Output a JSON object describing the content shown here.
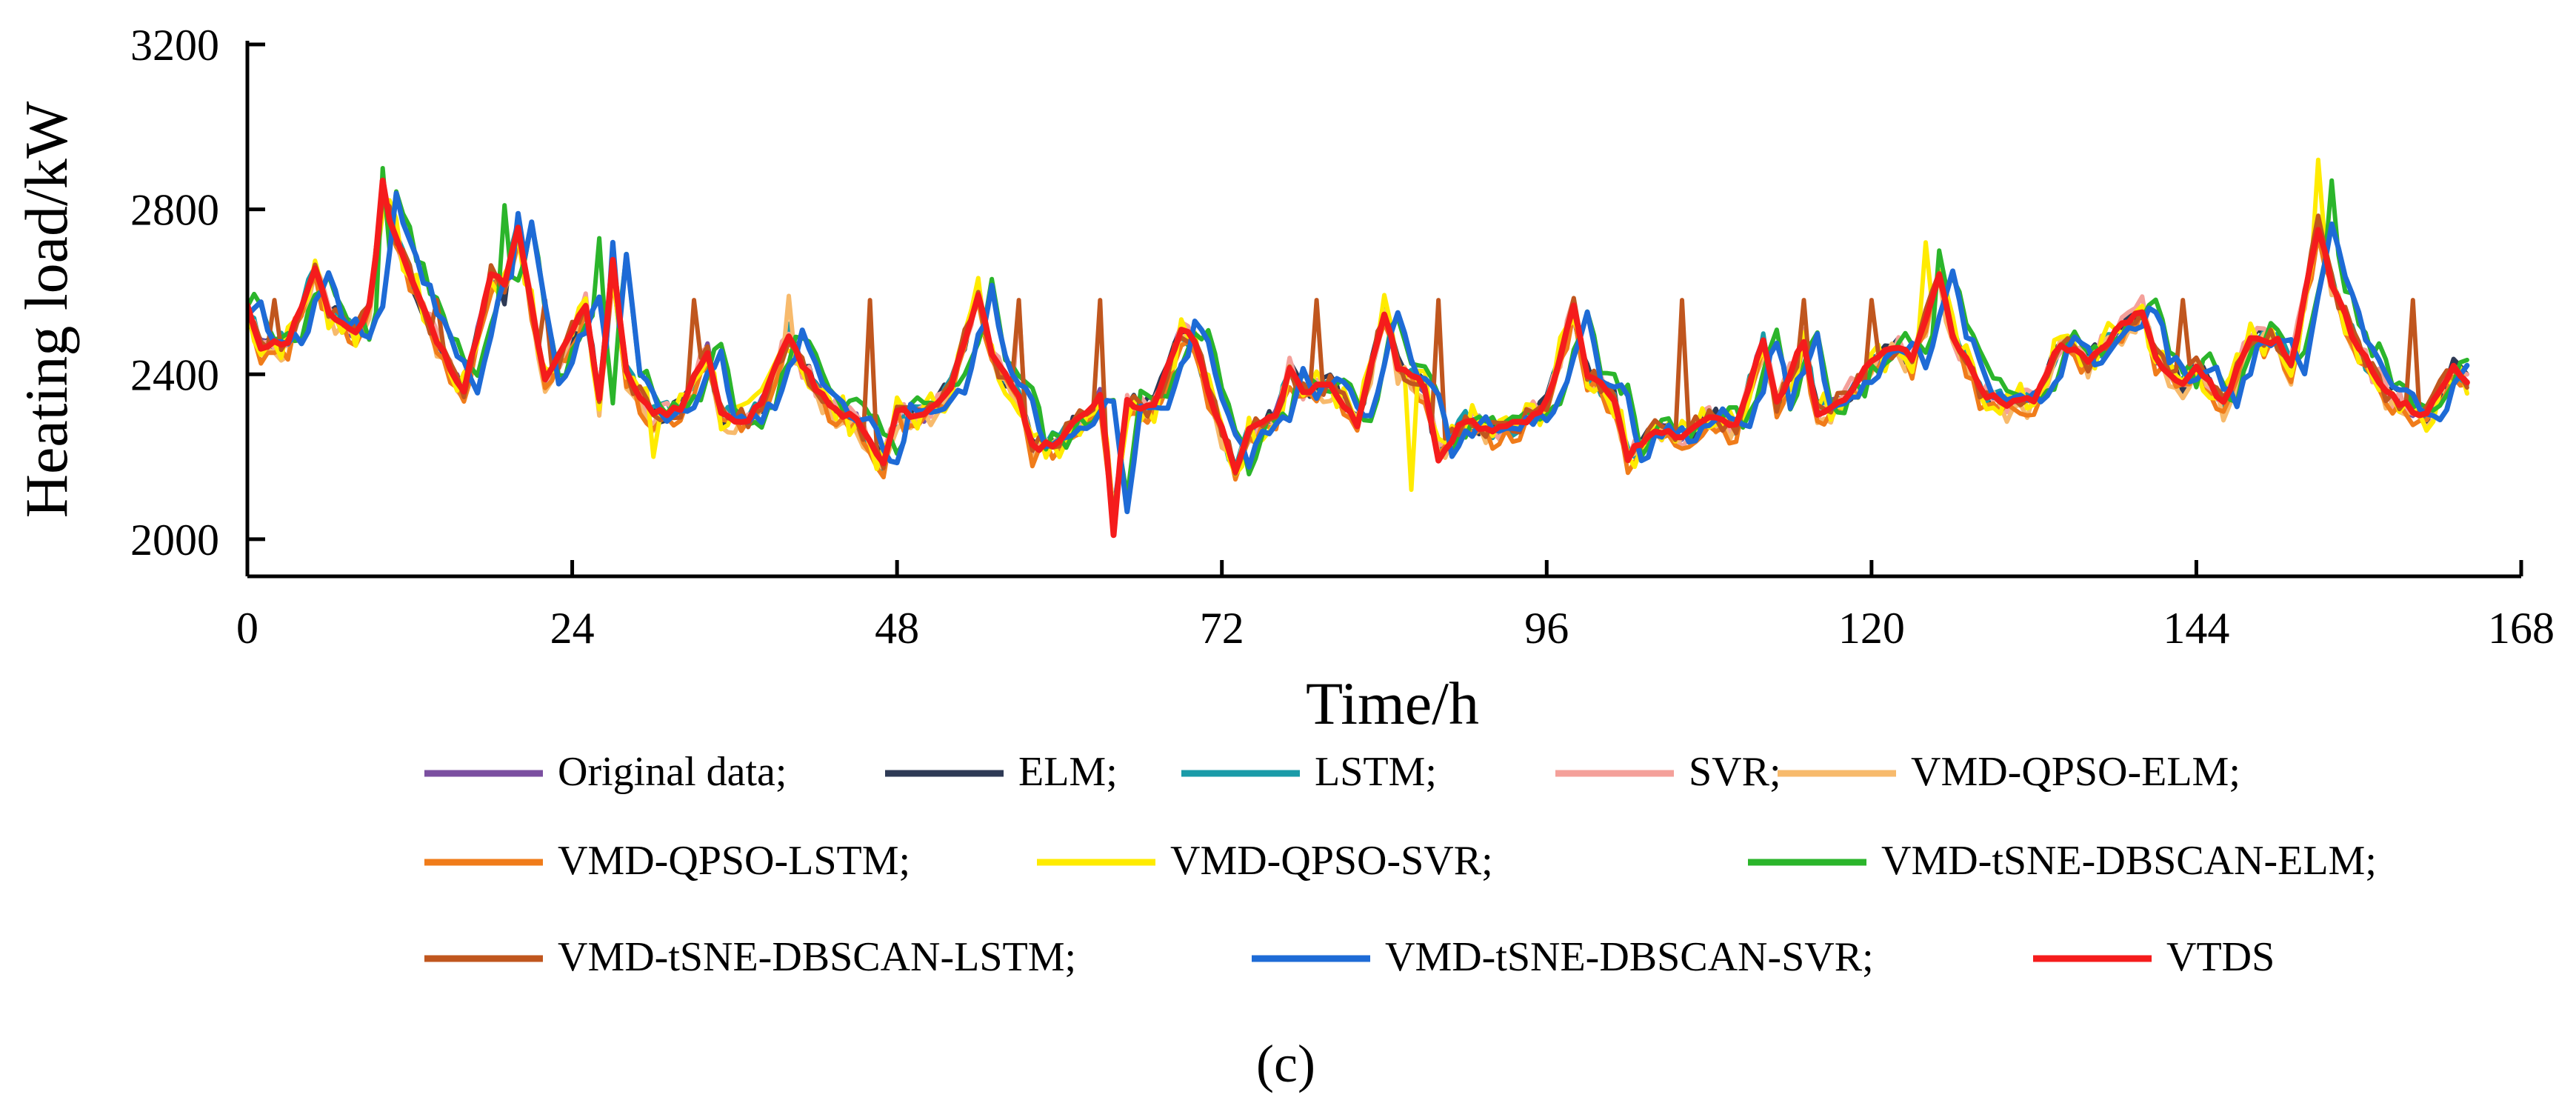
{
  "chart_data": {
    "type": "line",
    "title": "",
    "xlabel": "Time/h",
    "ylabel": "Heating load/kW",
    "xlim": [
      0,
      168
    ],
    "ylim": [
      1910,
      3200
    ],
    "x_ticks": [
      "0",
      "24",
      "48",
      "72",
      "96",
      "120",
      "144",
      "168"
    ],
    "y_ticks": [
      "2000",
      "2400",
      "2800",
      "3200"
    ],
    "panel_label": "(c)",
    "legend_separator": ";",
    "series": [
      {
        "name": "Original data",
        "color": "#7B4FA0",
        "stroke": 6,
        "seed": 1,
        "shift": 0,
        "bias": 0,
        "noise": 15,
        "spikes": []
      },
      {
        "name": "ELM",
        "color": "#2E3A55",
        "stroke": 6,
        "seed": 2,
        "shift": 0,
        "bias": 0,
        "noise": 25,
        "spikes": [
          [
            19,
            2570
          ]
        ]
      },
      {
        "name": "LSTM",
        "color": "#1A9BA8",
        "stroke": 6,
        "seed": 3,
        "shift": 0,
        "bias": 0,
        "noise": 25,
        "spikes": []
      },
      {
        "name": "SVR",
        "color": "#F4A09A",
        "stroke": 6,
        "seed": 4,
        "shift": 0,
        "bias": 0,
        "noise": 30,
        "spikes": [
          [
            57,
            2570
          ]
        ]
      },
      {
        "name": "VMD-QPSO-ELM",
        "color": "#F7BA6C",
        "stroke": 6,
        "seed": 5,
        "shift": 0,
        "bias": -15,
        "noise": 30,
        "spikes": [
          [
            40,
            2590
          ]
        ]
      },
      {
        "name": "VMD-QPSO-LSTM",
        "color": "#F07C1A",
        "stroke": 6,
        "seed": 6,
        "shift": 0,
        "bias": -20,
        "noise": 25,
        "spikes": []
      },
      {
        "name": "VMD-QPSO-SVR",
        "color": "#FFEB00",
        "stroke": 6,
        "seed": 7,
        "shift": 0,
        "bias": 0,
        "noise": 45,
        "spikes": [
          [
            124,
            2720
          ],
          [
            153,
            2920
          ],
          [
            86,
            2120
          ],
          [
            30,
            2200
          ]
        ]
      },
      {
        "name": "VMD-tSNE-DBSCAN-ELM",
        "color": "#2BB52B",
        "stroke": 6,
        "seed": 8,
        "shift": 1,
        "bias": 10,
        "noise": 30,
        "spikes": [
          [
            10,
            2900
          ],
          [
            19,
            2810
          ],
          [
            26,
            2730
          ],
          [
            125,
            2700
          ],
          [
            154,
            2870
          ]
        ]
      },
      {
        "name": "VMD-tSNE-DBSCAN-LSTM",
        "color": "#C0561E",
        "stroke": 6,
        "seed": 9,
        "shift": 0,
        "bias": 0,
        "noise": 25,
        "spikes": [
          [
            2,
            2580
          ],
          [
            14,
            2580
          ],
          [
            22,
            2580
          ],
          [
            33,
            2580
          ],
          [
            46,
            2580
          ],
          [
            57,
            2580
          ],
          [
            63,
            2580
          ],
          [
            79,
            2580
          ],
          [
            88,
            2580
          ],
          [
            106,
            2580
          ],
          [
            115,
            2580
          ],
          [
            120,
            2580
          ],
          [
            143,
            2580
          ],
          [
            160,
            2580
          ]
        ]
      },
      {
        "name": "VMD-tSNE-DBSCAN-SVR",
        "color": "#1E6BD6",
        "stroke": 7,
        "seed": 10,
        "shift": 1,
        "bias": 0,
        "noise": 20,
        "spikes": [
          [
            20,
            2790
          ],
          [
            27,
            2720
          ]
        ]
      },
      {
        "name": "VTDS",
        "color": "#F51C1C",
        "stroke": 8,
        "seed": 11,
        "shift": 0,
        "bias": 0,
        "noise": 10,
        "spikes": [
          [
            10,
            2870
          ],
          [
            64,
            2010
          ]
        ]
      }
    ],
    "base_key_points": [
      [
        0,
        2560
      ],
      [
        1,
        2470
      ],
      [
        3,
        2480
      ],
      [
        5,
        2650
      ],
      [
        6,
        2550
      ],
      [
        8,
        2500
      ],
      [
        9,
        2560
      ],
      [
        10,
        2830
      ],
      [
        12,
        2640
      ],
      [
        14,
        2480
      ],
      [
        16,
        2360
      ],
      [
        18,
        2640
      ],
      [
        19,
        2620
      ],
      [
        20,
        2750
      ],
      [
        22,
        2380
      ],
      [
        23,
        2440
      ],
      [
        25,
        2570
      ],
      [
        26,
        2340
      ],
      [
        27,
        2680
      ],
      [
        28,
        2400
      ],
      [
        30,
        2300
      ],
      [
        32,
        2320
      ],
      [
        34,
        2460
      ],
      [
        35,
        2300
      ],
      [
        37,
        2290
      ],
      [
        38,
        2330
      ],
      [
        40,
        2500
      ],
      [
        41,
        2420
      ],
      [
        43,
        2320
      ],
      [
        45,
        2290
      ],
      [
        47,
        2180
      ],
      [
        48,
        2310
      ],
      [
        50,
        2300
      ],
      [
        52,
        2370
      ],
      [
        54,
        2600
      ],
      [
        55,
        2440
      ],
      [
        57,
        2350
      ],
      [
        58,
        2220
      ],
      [
        60,
        2240
      ],
      [
        62,
        2310
      ],
      [
        63,
        2350
      ],
      [
        64,
        2080
      ],
      [
        65,
        2330
      ],
      [
        67,
        2320
      ],
      [
        69,
        2510
      ],
      [
        70,
        2480
      ],
      [
        71,
        2360
      ],
      [
        73,
        2170
      ],
      [
        74,
        2260
      ],
      [
        76,
        2300
      ],
      [
        77,
        2410
      ],
      [
        78,
        2360
      ],
      [
        80,
        2380
      ],
      [
        82,
        2280
      ],
      [
        84,
        2550
      ],
      [
        85,
        2420
      ],
      [
        87,
        2370
      ],
      [
        88,
        2200
      ],
      [
        90,
        2290
      ],
      [
        92,
        2260
      ],
      [
        94,
        2280
      ],
      [
        96,
        2330
      ],
      [
        98,
        2560
      ],
      [
        99,
        2400
      ],
      [
        101,
        2340
      ],
      [
        102,
        2200
      ],
      [
        104,
        2270
      ],
      [
        106,
        2250
      ],
      [
        108,
        2300
      ],
      [
        110,
        2270
      ],
      [
        112,
        2480
      ],
      [
        113,
        2330
      ],
      [
        115,
        2480
      ],
      [
        116,
        2310
      ],
      [
        118,
        2340
      ],
      [
        120,
        2430
      ],
      [
        122,
        2470
      ],
      [
        123,
        2430
      ],
      [
        125,
        2640
      ],
      [
        126,
        2500
      ],
      [
        128,
        2360
      ],
      [
        130,
        2330
      ],
      [
        132,
        2340
      ],
      [
        134,
        2480
      ],
      [
        136,
        2430
      ],
      [
        138,
        2500
      ],
      [
        140,
        2560
      ],
      [
        141,
        2440
      ],
      [
        143,
        2380
      ],
      [
        144,
        2420
      ],
      [
        146,
        2330
      ],
      [
        148,
        2490
      ],
      [
        150,
        2480
      ],
      [
        151,
        2420
      ],
      [
        153,
        2760
      ],
      [
        154,
        2620
      ],
      [
        156,
        2460
      ],
      [
        158,
        2360
      ],
      [
        160,
        2310
      ],
      [
        161,
        2300
      ],
      [
        163,
        2420
      ],
      [
        164,
        2390
      ]
    ]
  }
}
